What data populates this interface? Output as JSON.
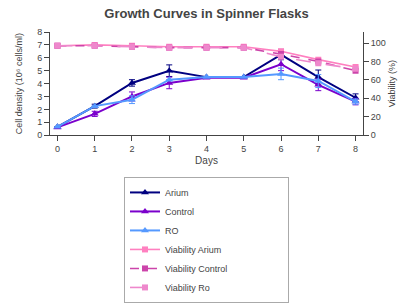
{
  "chart_data": {
    "type": "line",
    "title": "Growth Curves in Spinner Flasks",
    "xlabel": "Days",
    "ylabel": "Cell density (10⁶ cells/ml)",
    "y2label": "Viability (%)",
    "x": [
      0,
      1,
      2,
      3,
      4,
      5,
      6,
      7,
      8
    ],
    "xlim": [
      -0.2,
      8.2
    ],
    "xticks": [
      0,
      1,
      2,
      3,
      4,
      5,
      6,
      7,
      8
    ],
    "ylim": [
      0,
      8
    ],
    "yticks": [
      0,
      1,
      2,
      3,
      4,
      5,
      6,
      7,
      8
    ],
    "y2lim": [
      0,
      112
    ],
    "y2ticks": [
      0,
      20,
      40,
      60,
      80,
      100
    ],
    "grid": false,
    "legend": "bottom",
    "series": [
      {
        "name": "Arium",
        "color": "#000080",
        "marker": "triangle",
        "line_style": "solid",
        "values": [
          0.65,
          2.25,
          4.05,
          5.0,
          4.5,
          4.5,
          6.25,
          4.5,
          2.9
        ],
        "errors": [
          0.0,
          0.15,
          0.25,
          0.45,
          0.0,
          0.0,
          0.4,
          0.55,
          0.3
        ]
      },
      {
        "name": "Control",
        "color": "#7B00CC",
        "marker": "triangle",
        "line_style": "solid",
        "values": [
          0.6,
          1.65,
          3.0,
          4.05,
          4.45,
          4.45,
          5.5,
          3.9,
          2.6
        ],
        "errors": [
          0.0,
          0.2,
          0.35,
          0.45,
          0.0,
          0.0,
          0.5,
          0.45,
          0.25
        ]
      },
      {
        "name": "RO",
        "color": "#5599FF",
        "marker": "triangle",
        "line_style": "solid",
        "values": [
          0.65,
          2.25,
          2.75,
          4.3,
          4.5,
          4.5,
          4.75,
          4.2,
          2.6
        ],
        "errors": [
          0.0,
          0.0,
          0.3,
          0.0,
          0.0,
          0.0,
          0.45,
          0.5,
          0.2
        ]
      },
      {
        "name": "Viability Arium",
        "color": "#FF80C0",
        "marker": "square",
        "line_style": "solid",
        "axis": "y2",
        "values": [
          97,
          98,
          97,
          96,
          96,
          96,
          91,
          82,
          74
        ]
      },
      {
        "name": "Viability Control",
        "color": "#CC44AA",
        "marker": "square",
        "line_style": "dashed",
        "axis": "y2",
        "values": [
          97,
          97,
          96,
          95,
          95,
          95,
          88,
          80,
          70
        ]
      },
      {
        "name": "Viability Ro",
        "color": "#EE88CC",
        "marker": "square",
        "line_style": "long dashed",
        "axis": "y2",
        "values": [
          97,
          97,
          96,
          95,
          95,
          95,
          85,
          78,
          72
        ]
      }
    ]
  }
}
